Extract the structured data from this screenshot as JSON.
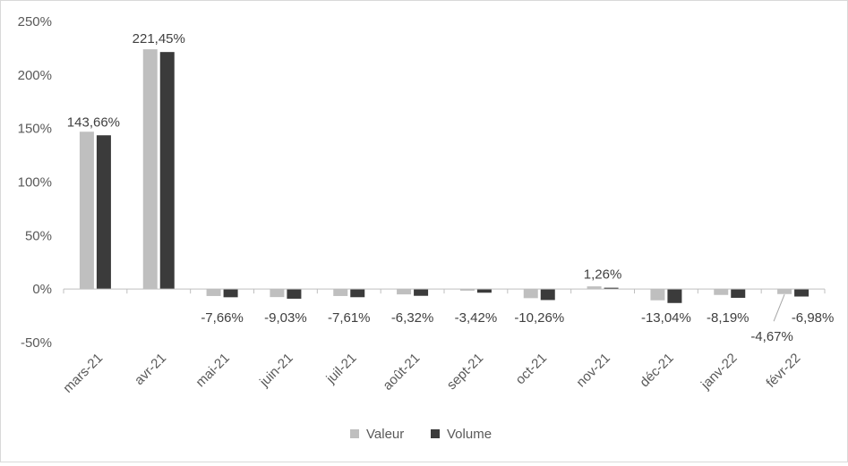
{
  "chart_data": {
    "type": "bar",
    "categories": [
      "mars-21",
      "avr-21",
      "mai-21",
      "juin-21",
      "juil-21",
      "août-21",
      "sept-21",
      "oct-21",
      "nov-21",
      "déc-21",
      "janv-22",
      "févr-22"
    ],
    "series": [
      {
        "name": "Valeur",
        "color": "#bfbfbf",
        "values": [
          147,
          224,
          -6.5,
          -7.5,
          -6.5,
          -5.0,
          -1.5,
          -8.5,
          2.5,
          -10.5,
          -5.5,
          -4.67
        ]
      },
      {
        "name": "Volume",
        "color": "#3b3b3b",
        "values": [
          143.66,
          221.45,
          -7.66,
          -9.03,
          -7.61,
          -6.32,
          -3.42,
          -10.26,
          1.26,
          -13.04,
          -8.19,
          -6.98
        ]
      }
    ],
    "data_labels": [
      "143,66%",
      "221,45%",
      "-7,66%",
      "-9,03%",
      "-7,61%",
      "-6,32%",
      "-3,42%",
      "-10,26%",
      "1,26%",
      "-13,04%",
      "-8,19%",
      "-6,98%"
    ],
    "extra_labels": [
      {
        "category": "févr-22",
        "series": "Valeur",
        "text": "-4,67%"
      }
    ],
    "y_ticks": [
      "250%",
      "200%",
      "150%",
      "100%",
      "50%",
      "0%",
      "-50%"
    ],
    "ylim": [
      -50,
      250
    ],
    "grid": false,
    "legend_position": "bottom",
    "title": "",
    "xlabel": "",
    "ylabel": ""
  }
}
